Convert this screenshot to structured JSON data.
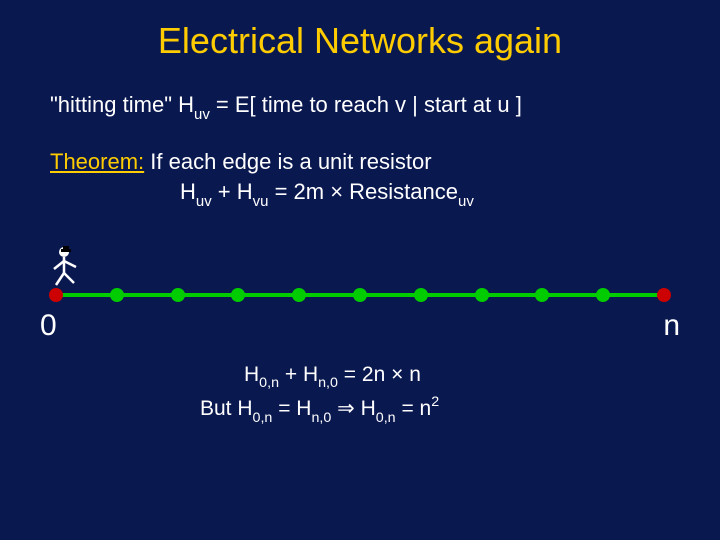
{
  "background_color": "#0a1850",
  "title": {
    "text": "Electrical Networks again",
    "color": "#ffcc00",
    "fontsize": 36
  },
  "hitting_line": {
    "prefix": "\"hitting time\" H",
    "sub1": "uv",
    "middle": " = E[ time to reach v | start at u ]",
    "color": "#ffffff",
    "fontsize": 22
  },
  "theorem": {
    "label": "Theorem:",
    "label_color": "#ffcc00",
    "text": " If each edge is a unit resistor",
    "formula_prefix": "H",
    "formula_sub1": "uv",
    "formula_plus": " + H",
    "formula_sub2": "vu",
    "formula_eq": " = 2m × Resistance",
    "formula_sub3": "uv"
  },
  "diagram": {
    "type": "number-line",
    "line_color": "#00cc00",
    "node_count": 11,
    "left_label": "0",
    "right_label": "n",
    "label_color": "#ffffff",
    "label_fontsize": 30,
    "nodes": [
      {
        "pos_pct": 1.0,
        "color": "#cc0000"
      },
      {
        "pos_pct": 10.8,
        "color": "#00cc00"
      },
      {
        "pos_pct": 20.6,
        "color": "#00cc00"
      },
      {
        "pos_pct": 30.4,
        "color": "#00cc00"
      },
      {
        "pos_pct": 40.2,
        "color": "#00cc00"
      },
      {
        "pos_pct": 50.0,
        "color": "#00cc00"
      },
      {
        "pos_pct": 59.8,
        "color": "#00cc00"
      },
      {
        "pos_pct": 69.6,
        "color": "#00cc00"
      },
      {
        "pos_pct": 79.4,
        "color": "#00cc00"
      },
      {
        "pos_pct": 89.2,
        "color": "#00cc00"
      },
      {
        "pos_pct": 99.0,
        "color": "#cc0000"
      }
    ],
    "stickman_color": "#ffffff"
  },
  "bottom": {
    "r1_a": "H",
    "r1_sub1": "0,n",
    "r1_b": " + H",
    "r1_sub2": "n,0",
    "r1_c": " = 2n × n",
    "r2_a": "But H",
    "r2_sub1": "0,n",
    "r2_b": " = H",
    "r2_sub2": "n,0",
    "r2_c": "  ⇒   H",
    "r2_sub3": "0,n",
    "r2_d": " = n",
    "r2_sup": "2"
  }
}
